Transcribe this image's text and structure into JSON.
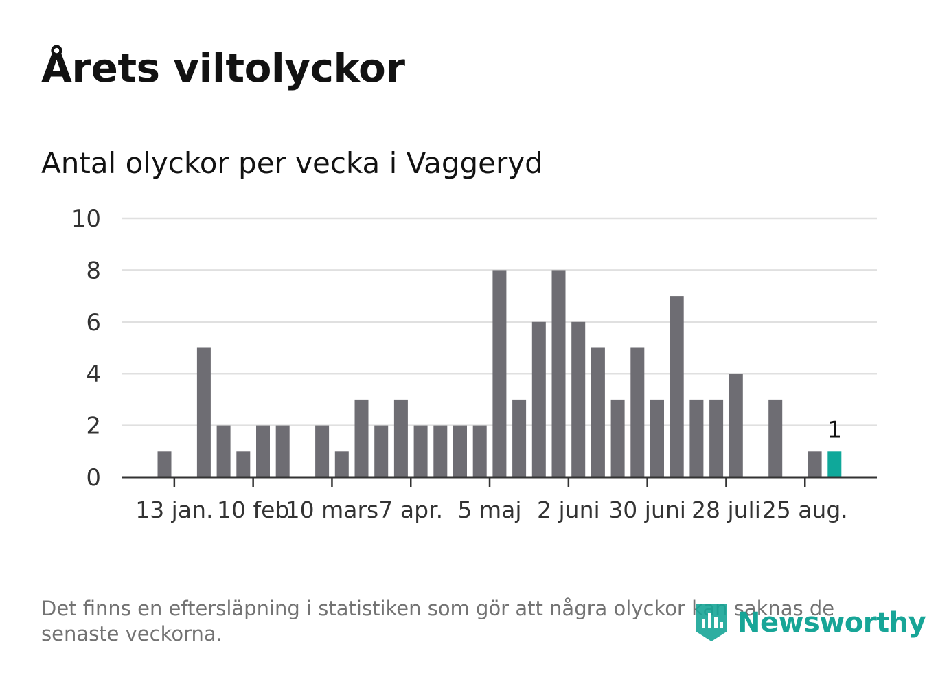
{
  "title": "Årets viltolyckor",
  "subtitle": "Antal olyckor per vecka i Vaggeryd",
  "footnote": "Det finns en eftersläpning i statistiken som gör att några olyckor kan saknas de senaste veckorna.",
  "logo_text": "Newsworthy",
  "colors": {
    "bar": "#6e6d73",
    "highlight": "#0fa89a",
    "grid": "#e0e0e0",
    "axis": "#333333",
    "logo": "#17a597"
  },
  "chart_data": {
    "type": "bar",
    "title": "",
    "xlabel": "",
    "ylabel": "",
    "ylim": [
      0,
      10
    ],
    "yticks": [
      0,
      2,
      4,
      6,
      8,
      10
    ],
    "grid": true,
    "week_numbers": [
      1,
      2,
      3,
      4,
      5,
      6,
      7,
      8,
      9,
      10,
      11,
      12,
      13,
      14,
      15,
      16,
      17,
      18,
      19,
      20,
      21,
      22,
      23,
      24,
      25,
      26,
      27,
      28,
      29,
      30,
      31,
      32,
      33,
      34,
      35
    ],
    "values": [
      1,
      0,
      5,
      2,
      1,
      2,
      2,
      0,
      2,
      1,
      3,
      2,
      3,
      2,
      2,
      2,
      2,
      8,
      3,
      6,
      8,
      6,
      5,
      3,
      5,
      3,
      7,
      3,
      3,
      4,
      0,
      3,
      0,
      1,
      1
    ],
    "highlight_index": 34,
    "highlight_label": "1",
    "xticks": [
      {
        "label": "13 jan.",
        "week": 2
      },
      {
        "label": "10 feb",
        "week": 6
      },
      {
        "label": "10 mars",
        "week": 10
      },
      {
        "label": "7 apr.",
        "week": 14
      },
      {
        "label": "5 maj",
        "week": 18
      },
      {
        "label": "2 juni",
        "week": 22
      },
      {
        "label": "30 juni",
        "week": 26
      },
      {
        "label": "28 juli",
        "week": 30
      },
      {
        "label": "25 aug.",
        "week": 34
      }
    ]
  }
}
